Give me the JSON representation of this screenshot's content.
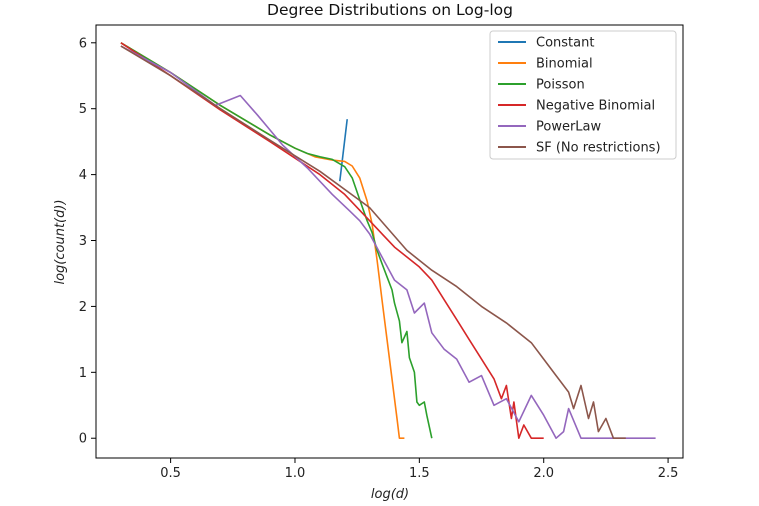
{
  "chart_data": {
    "type": "line",
    "title": "Degree Distributions on Log-log",
    "xlabel": "log(d)",
    "ylabel": "log(count(d))",
    "xlim": [
      0.2,
      2.56
    ],
    "ylim": [
      -0.3,
      6.27
    ],
    "xticks": [
      0.5,
      1.0,
      1.5,
      2.0,
      2.5
    ],
    "xtick_labels": [
      "0.5",
      "1.0",
      "1.5",
      "2.0",
      "2.5"
    ],
    "yticks": [
      0,
      1,
      2,
      3,
      4,
      5,
      6
    ],
    "ytick_labels": [
      "0",
      "1",
      "2",
      "3",
      "4",
      "5",
      "6"
    ],
    "grid": false,
    "legend_position": "top-right",
    "series": [
      {
        "name": "Constant",
        "color": "#1f77b4",
        "x": [
          1.18,
          1.21
        ],
        "y": [
          3.9,
          4.84
        ]
      },
      {
        "name": "Binomial",
        "color": "#ff7f0e",
        "x": [
          0.3,
          0.5,
          0.7,
          0.9,
          1.0,
          1.08,
          1.15,
          1.2,
          1.23,
          1.26,
          1.29,
          1.31,
          1.33,
          1.35,
          1.37,
          1.39,
          1.41,
          1.42,
          1.44
        ],
        "y": [
          6.0,
          5.55,
          5.05,
          4.6,
          4.4,
          4.27,
          4.22,
          4.2,
          4.13,
          3.95,
          3.6,
          3.25,
          2.7,
          2.1,
          1.5,
          0.9,
          0.3,
          0.0,
          0.0
        ]
      },
      {
        "name": "Poisson",
        "color": "#2ca02c",
        "x": [
          0.3,
          0.5,
          0.7,
          0.9,
          1.0,
          1.05,
          1.1,
          1.15,
          1.2,
          1.23,
          1.26,
          1.29,
          1.31,
          1.33,
          1.35,
          1.37,
          1.39,
          1.4,
          1.42,
          1.43,
          1.45,
          1.46,
          1.48,
          1.49,
          1.5,
          1.52,
          1.53,
          1.55
        ],
        "y": [
          6.0,
          5.55,
          5.05,
          4.6,
          4.4,
          4.32,
          4.27,
          4.23,
          4.12,
          3.95,
          3.62,
          3.3,
          3.12,
          2.85,
          2.65,
          2.45,
          2.25,
          2.05,
          1.78,
          1.45,
          1.62,
          1.22,
          1.0,
          0.55,
          0.5,
          0.55,
          0.35,
          0.0
        ]
      },
      {
        "name": "Negative Binomial",
        "color": "#d62728",
        "x": [
          0.3,
          0.5,
          0.7,
          0.9,
          1.1,
          1.2,
          1.3,
          1.4,
          1.5,
          1.55,
          1.6,
          1.65,
          1.7,
          1.75,
          1.8,
          1.83,
          1.85,
          1.87,
          1.88,
          1.9,
          1.92,
          1.95,
          2.0
        ],
        "y": [
          6.0,
          5.5,
          4.98,
          4.5,
          4.0,
          3.7,
          3.3,
          2.9,
          2.6,
          2.4,
          2.1,
          1.8,
          1.5,
          1.2,
          0.9,
          0.6,
          0.8,
          0.3,
          0.55,
          0.0,
          0.2,
          0.0,
          0.0
        ]
      },
      {
        "name": "PowerLaw",
        "color": "#9467bd",
        "x": [
          0.3,
          0.5,
          0.68,
          0.78,
          0.85,
          0.95,
          1.05,
          1.15,
          1.22,
          1.26,
          1.3,
          1.35,
          1.4,
          1.45,
          1.48,
          1.52,
          1.55,
          1.6,
          1.65,
          1.7,
          1.75,
          1.8,
          1.85,
          1.9,
          1.95,
          2.0,
          2.05,
          2.08,
          2.1,
          2.15,
          2.2,
          2.3,
          2.45
        ],
        "y": [
          5.95,
          5.55,
          5.05,
          5.2,
          4.9,
          4.45,
          4.1,
          3.7,
          3.45,
          3.3,
          3.1,
          2.75,
          2.4,
          2.25,
          1.9,
          2.05,
          1.6,
          1.35,
          1.2,
          0.85,
          0.95,
          0.5,
          0.6,
          0.25,
          0.65,
          0.35,
          0.0,
          0.1,
          0.45,
          0.0,
          0.0,
          0.0,
          0.0
        ]
      },
      {
        "name": "SF (No restrictions)",
        "color": "#8c564b",
        "x": [
          0.3,
          0.5,
          0.7,
          0.9,
          1.1,
          1.3,
          1.45,
          1.55,
          1.65,
          1.75,
          1.85,
          1.95,
          2.0,
          2.05,
          2.1,
          2.12,
          2.15,
          2.18,
          2.2,
          2.22,
          2.25,
          2.28,
          2.3,
          2.33
        ],
        "y": [
          5.95,
          5.5,
          5.0,
          4.52,
          4.05,
          3.5,
          2.85,
          2.55,
          2.3,
          2.0,
          1.75,
          1.45,
          1.2,
          0.95,
          0.7,
          0.45,
          0.8,
          0.3,
          0.55,
          0.1,
          0.3,
          0.0,
          0.0,
          0.0
        ]
      }
    ]
  }
}
